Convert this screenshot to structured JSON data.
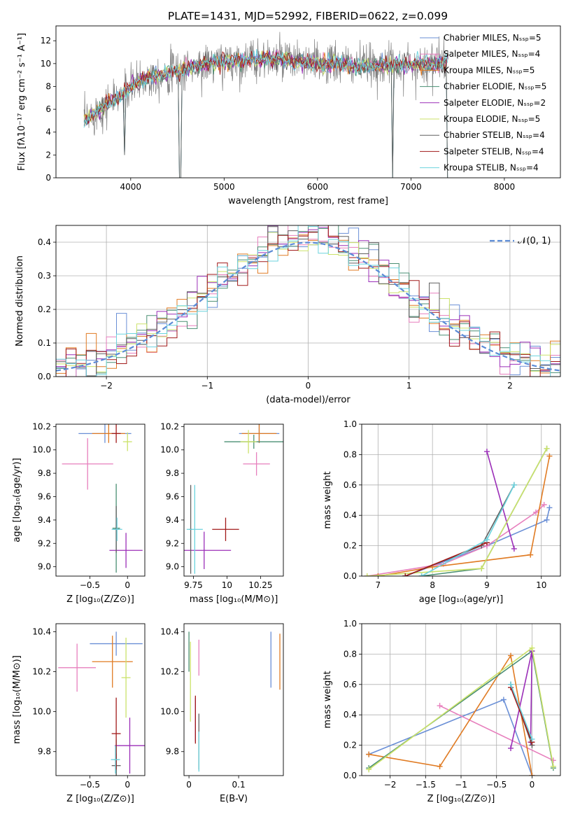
{
  "title": "PLATE=1431, MJD=52992, FIBERID=0622, z=0.099",
  "colors": [
    "#6a8fd6",
    "#e77fbd",
    "#e07b23",
    "#4a8f73",
    "#9b2fb8",
    "#cbe26a",
    "#606060",
    "#a11a1a",
    "#6bd3de"
  ],
  "chart_data": [
    {
      "id": "spectrum",
      "type": "line",
      "xlabel": "wavelength [Angstrom, rest frame]",
      "ylabel": "Flux [fλ10⁻¹⁷ erg cm⁻² s⁻¹ A⁻¹]",
      "xlim": [
        3200,
        8600
      ],
      "ylim": [
        0,
        13.3
      ],
      "xticks": [
        4000,
        5000,
        6000,
        7000,
        8000
      ],
      "yticks": [
        0,
        2,
        4,
        6,
        8,
        10,
        12
      ],
      "legend_position": "right",
      "legend": [
        "Chabrier MILES, Nₛₛₚ=5",
        "Salpeter MILES, Nₛₛₚ=4",
        "Kroupa MILES, Nₛₛₚ=5",
        "Chabrier ELODIE, Nₛₛₚ=5",
        "Salpeter ELODIE, Nₛₛₚ=2",
        "Kroupa ELODIE, Nₛₛₚ=5",
        "Chabrier STELIB, Nₛₛₚ=4",
        "Salpeter STELIB, Nₛₛₚ=4",
        "Kroupa STELIB, Nₛₛₚ=4"
      ],
      "data_envelope": {
        "x": [
          3500,
          3700,
          3900,
          4100,
          4300,
          4600,
          5000,
          5500,
          6000,
          6500,
          7000,
          7200,
          7400
        ],
        "y": [
          5.0,
          6.2,
          7.2,
          8.5,
          9.0,
          9.6,
          10.2,
          10.4,
          10.0,
          9.8,
          9.9,
          10.0,
          10.2
        ]
      },
      "absorption_dips": [
        {
          "x": 3930,
          "y": 2.0
        },
        {
          "x": 4530,
          "y": 0.0
        },
        {
          "x": 6800,
          "y": 0.0
        },
        {
          "x": 7400,
          "y": 0.0
        }
      ]
    },
    {
      "id": "residuals",
      "type": "step",
      "xlabel": "(data-model)/error",
      "ylabel": "Normed distribution",
      "xlim": [
        -2.5,
        2.5
      ],
      "ylim": [
        0,
        0.45
      ],
      "xticks": [
        -2,
        -1,
        0,
        1,
        2
      ],
      "yticks": [
        0.0,
        0.1,
        0.2,
        0.3,
        0.4
      ],
      "grid": true,
      "legend": [
        "𝒩(0, 1)"
      ],
      "legend_position": "top-right",
      "normal": {
        "mu": 0,
        "sigma": 1
      }
    },
    {
      "id": "Z_vs_age",
      "type": "errorbar",
      "xlabel": "Z [log₁₀(Z/Z⊙)]",
      "ylabel": "age  [log₁₀(age/yr)]",
      "xlim": [
        -0.95,
        0.23
      ],
      "ylim": [
        8.92,
        10.22
      ],
      "xticks": [
        -0.5,
        0.0
      ],
      "yticks": [
        9.0,
        9.2,
        9.4,
        9.6,
        9.8,
        10.0,
        10.2
      ],
      "points": [
        {
          "x": -0.3,
          "xerr": 0.35,
          "y": 10.14,
          "yerr": 0.08,
          "c": 0
        },
        {
          "x": -0.53,
          "xerr": 0.34,
          "y": 9.88,
          "yerr": 0.22,
          "c": 1
        },
        {
          "x": -0.25,
          "xerr": 0.22,
          "y": 10.14,
          "yerr": 0.08,
          "c": 2
        },
        {
          "x": -0.15,
          "xerr": 0.05,
          "y": 9.33,
          "yerr": 0.38,
          "c": 3
        },
        {
          "x": -0.02,
          "xerr": 0.22,
          "y": 9.14,
          "yerr": 0.15,
          "c": 4
        },
        {
          "x": 0.0,
          "xerr": 0.06,
          "y": 10.07,
          "yerr": 0.08,
          "c": 5
        },
        {
          "x": -0.15,
          "xerr": 0.04,
          "y": 9.32,
          "yerr": 0.2,
          "c": 6
        },
        {
          "x": -0.15,
          "xerr": 0.06,
          "y": 10.14,
          "yerr": 0.08,
          "c": 7
        },
        {
          "x": -0.14,
          "xerr": 0.07,
          "y": 9.32,
          "yerr": 0.1,
          "c": 8
        }
      ]
    },
    {
      "id": "mass_vs_age",
      "type": "errorbar",
      "xlabel": "mass [log₁₀(M/M⊙)]",
      "ylabel": "",
      "xlim": [
        9.68,
        10.42
      ],
      "ylim": [
        8.92,
        10.22
      ],
      "xticks": [
        9.75,
        10.0,
        10.25
      ],
      "yticks": [
        9.0,
        9.2,
        9.4,
        9.6,
        9.8,
        10.0,
        10.2
      ],
      "points": [
        {
          "x": 10.24,
          "xerr": 0.15,
          "y": 10.14,
          "yerr": 0.08,
          "c": 0
        },
        {
          "x": 10.22,
          "xerr": 0.1,
          "y": 9.88,
          "yerr": 0.1,
          "c": 1
        },
        {
          "x": 10.24,
          "xerr": 0.13,
          "y": 10.14,
          "yerr": 0.08,
          "c": 2
        },
        {
          "x": 10.2,
          "xerr": 0.22,
          "y": 10.07,
          "yerr": 0.06,
          "c": 3
        },
        {
          "x": 9.83,
          "xerr": 0.2,
          "y": 9.14,
          "yerr": 0.16,
          "c": 4
        },
        {
          "x": 10.16,
          "xerr": 0.06,
          "y": 10.07,
          "yerr": 0.1,
          "c": 5
        },
        {
          "x": 9.73,
          "xerr": 0.01,
          "y": 9.32,
          "yerr": 0.38,
          "c": 6
        },
        {
          "x": 9.99,
          "xerr": 0.1,
          "y": 9.32,
          "yerr": 0.1,
          "c": 7
        },
        {
          "x": 9.76,
          "xerr": 0.06,
          "y": 9.32,
          "yerr": 0.38,
          "c": 8
        }
      ]
    },
    {
      "id": "age_vs_weight",
      "type": "line",
      "xlabel": "age  [log₁₀(age/yr)]",
      "ylabel": "mass weight",
      "xlim": [
        6.7,
        10.35
      ],
      "ylim": [
        0,
        1.0
      ],
      "xticks": [
        7,
        8,
        9,
        10
      ],
      "yticks": [
        0.0,
        0.2,
        0.4,
        0.6,
        0.8,
        1.0
      ],
      "grid": true,
      "series": [
        {
          "c": 0,
          "x": [
            7.5,
            9.0,
            10.1,
            10.15
          ],
          "y": [
            0.0,
            0.2,
            0.37,
            0.45
          ]
        },
        {
          "c": 1,
          "x": [
            6.8,
            8.2,
            9.0,
            9.9,
            10.05
          ],
          "y": [
            0.0,
            0.08,
            0.2,
            0.42,
            0.47
          ]
        },
        {
          "c": 2,
          "x": [
            7.0,
            8.0,
            9.8,
            10.15
          ],
          "y": [
            0.0,
            0.06,
            0.14,
            0.79
          ]
        },
        {
          "c": 3,
          "x": [
            7.8,
            8.9,
            10.1
          ],
          "y": [
            0.0,
            0.05,
            0.84
          ]
        },
        {
          "c": 4,
          "x": [
            9.0,
            9.5
          ],
          "y": [
            0.82,
            0.18
          ]
        },
        {
          "c": 5,
          "x": [
            6.8,
            8.9,
            10.1
          ],
          "y": [
            0.0,
            0.05,
            0.84
          ]
        },
        {
          "c": 6,
          "x": [
            7.5,
            8.9,
            9.5
          ],
          "y": [
            0.0,
            0.2,
            0.6
          ]
        },
        {
          "c": 7,
          "x": [
            7.5,
            9.0
          ],
          "y": [
            0.0,
            0.22
          ]
        },
        {
          "c": 8,
          "x": [
            7.8,
            9.0,
            9.5
          ],
          "y": [
            0.0,
            0.24,
            0.6
          ]
        }
      ]
    },
    {
      "id": "Z_vs_mass",
      "type": "errorbar",
      "xlabel": "Z [log₁₀(Z/Z⊙)]",
      "ylabel": "mass [log₁₀(M/M⊙)]",
      "xlim": [
        -0.95,
        0.23
      ],
      "ylim": [
        9.68,
        10.44
      ],
      "xticks": [
        -0.5,
        0.0
      ],
      "yticks": [
        9.8,
        10.0,
        10.2,
        10.4
      ],
      "points": [
        {
          "x": -0.15,
          "xerr": 0.35,
          "y": 10.34,
          "yerr": 0.06,
          "c": 0
        },
        {
          "x": -0.67,
          "xerr": 0.25,
          "y": 10.22,
          "yerr": 0.12,
          "c": 1
        },
        {
          "x": -0.2,
          "xerr": 0.27,
          "y": 10.25,
          "yerr": 0.13,
          "c": 2
        },
        {
          "x": -0.15,
          "xerr": 0.03,
          "y": 9.76,
          "yerr": 0.1,
          "c": 3
        },
        {
          "x": 0.03,
          "xerr": 0.2,
          "y": 9.83,
          "yerr": 0.14,
          "c": 4
        },
        {
          "x": -0.02,
          "xerr": 0.06,
          "y": 10.17,
          "yerr": 0.2,
          "c": 5
        },
        {
          "x": -0.15,
          "xerr": 0.06,
          "y": 9.73,
          "yerr": 0.06,
          "c": 6
        },
        {
          "x": -0.15,
          "xerr": 0.06,
          "y": 9.89,
          "yerr": 0.18,
          "c": 7
        },
        {
          "x": -0.16,
          "xerr": 0.06,
          "y": 9.76,
          "yerr": 0.07,
          "c": 8
        }
      ]
    },
    {
      "id": "ebv_vs_mass",
      "type": "errorbar",
      "xlabel": "E(B-V)",
      "ylabel": "",
      "xlim": [
        -0.01,
        0.19
      ],
      "ylim": [
        9.68,
        10.44
      ],
      "xticks": [
        0.0,
        0.1
      ],
      "yticks": [
        9.8,
        10.0,
        10.2,
        10.4
      ],
      "points": [
        {
          "x": 0.165,
          "xerr": 0,
          "y": 10.26,
          "yerr": 0.14,
          "c": 0
        },
        {
          "x": 0.02,
          "xerr": 0,
          "y": 10.27,
          "yerr": 0.09,
          "c": 1
        },
        {
          "x": 0.183,
          "xerr": 0,
          "y": 10.25,
          "yerr": 0.14,
          "c": 2
        },
        {
          "x": 0.0,
          "xerr": 0,
          "y": 10.3,
          "yerr": 0.1,
          "c": 3
        },
        {
          "x": 0.013,
          "xerr": 0,
          "y": 9.96,
          "yerr": 0.11,
          "c": 4
        },
        {
          "x": 0.003,
          "xerr": 0,
          "y": 10.15,
          "yerr": 0.2,
          "c": 5
        },
        {
          "x": 0.02,
          "xerr": 0,
          "y": 9.85,
          "yerr": 0.14,
          "c": 6
        },
        {
          "x": 0.013,
          "xerr": 0,
          "y": 9.96,
          "yerr": 0.12,
          "c": 7
        },
        {
          "x": 0.02,
          "xerr": 0,
          "y": 9.8,
          "yerr": 0.1,
          "c": 8
        }
      ]
    },
    {
      "id": "Z_vs_weight",
      "type": "line",
      "xlabel": "Z [log₁₀(Z/Z⊙)]",
      "ylabel": "mass weight",
      "xlim": [
        -2.4,
        0.4
      ],
      "ylim": [
        0,
        1.0
      ],
      "xticks": [
        -2.0,
        -1.5,
        -1.0,
        -0.5,
        0.0
      ],
      "yticks": [
        0.0,
        0.2,
        0.4,
        0.6,
        0.8,
        1.0
      ],
      "grid": true,
      "series": [
        {
          "c": 0,
          "x": [
            -2.3,
            -0.4,
            0.0
          ],
          "y": [
            0.14,
            0.5,
            0.0
          ]
        },
        {
          "c": 1,
          "x": [
            -1.3,
            0.3
          ],
          "y": [
            0.46,
            0.1
          ]
        },
        {
          "c": 2,
          "x": [
            -2.3,
            -1.3,
            -0.3,
            0.0
          ],
          "y": [
            0.14,
            0.06,
            0.79,
            0.0
          ]
        },
        {
          "c": 3,
          "x": [
            -2.3,
            0.0,
            0.3
          ],
          "y": [
            0.05,
            0.82,
            0.05
          ]
        },
        {
          "c": 4,
          "x": [
            -0.3,
            0.0,
            -0.02
          ],
          "y": [
            0.18,
            0.82,
            0.22
          ]
        },
        {
          "c": 5,
          "x": [
            -2.3,
            0.0,
            0.3
          ],
          "y": [
            0.04,
            0.84,
            0.06
          ]
        },
        {
          "c": 6,
          "x": [
            -0.3,
            0.0
          ],
          "y": [
            0.6,
            0.2
          ]
        },
        {
          "c": 7,
          "x": [
            -0.3,
            0.0
          ],
          "y": [
            0.58,
            0.22
          ]
        },
        {
          "c": 8,
          "x": [
            -0.3,
            0.0
          ],
          "y": [
            0.6,
            0.24
          ]
        }
      ]
    }
  ]
}
